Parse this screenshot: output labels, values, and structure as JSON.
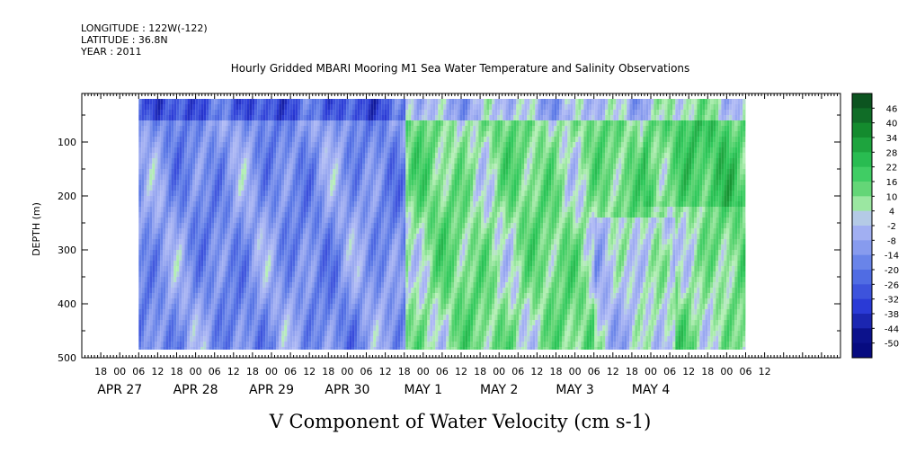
{
  "header": {
    "longitude": "LONGITUDE : 122W(-122)",
    "latitude": "LATITUDE : 36.8N",
    "year": "YEAR : 2011"
  },
  "chart_data": {
    "type": "heatmap",
    "title": "Hourly Gridded MBARI Mooring M1 Sea Water Temperature and Salinity Observations",
    "xlabel": "V Component of Water Velocity (cm s-1)",
    "ylabel": "DEPTH (m)",
    "y_axis": {
      "range": [
        500,
        10
      ],
      "inverted": true,
      "ticks": [
        100,
        200,
        300,
        400,
        500
      ]
    },
    "x_axis": {
      "hour_ticks": [
        "18",
        "00",
        "06",
        "12",
        "18",
        "00",
        "06",
        "12",
        "18",
        "00",
        "06",
        "12",
        "18",
        "00",
        "06",
        "12",
        "18",
        "00",
        "06",
        "12",
        "18",
        "00",
        "06",
        "12",
        "18",
        "00",
        "06",
        "12",
        "18",
        "00",
        "06",
        "12",
        "18",
        "00",
        "06",
        "12"
      ],
      "date_labels": [
        "APR 27",
        "APR 28",
        "APR 29",
        "APR 30",
        "MAY  1",
        "MAY  2",
        "MAY  3",
        "MAY  4"
      ]
    },
    "data_extent": {
      "hours_start": 6,
      "hours_end": 198,
      "depth_top": 20,
      "depth_bottom": 485
    },
    "colorbar": {
      "labels": [
        "46",
        "40",
        "34",
        "28",
        "22",
        "16",
        "10",
        "4",
        "-2",
        "-8",
        "-14",
        "-20",
        "-26",
        "-32",
        "-38",
        "-44",
        "-50"
      ],
      "min": -50,
      "max": 50,
      "step": 3,
      "colors": {
        "strong_positive": "#0a4a1e",
        "positive": "#2ec85a",
        "weak_positive": "#9ae89a",
        "weak_negative": "#b3bdf5",
        "negative": "#5a78e6",
        "strong_negative": "#04087a"
      }
    },
    "grid": false,
    "legend": "right (colorbar)",
    "description_regimes": [
      {
        "from_hour": 6,
        "to_hour": 90,
        "velocity_cm_s": -14
      },
      {
        "from_hour": 90,
        "to_hour": 198,
        "velocity_cm_s": 10
      }
    ]
  }
}
